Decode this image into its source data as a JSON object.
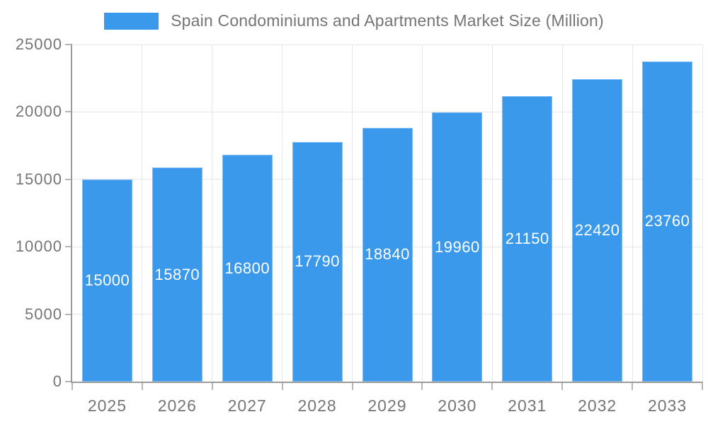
{
  "chart_data": {
    "type": "bar",
    "title": "Spain Condominiums and Apartments Market Size (Million)",
    "categories": [
      "2025",
      "2026",
      "2027",
      "2028",
      "2029",
      "2030",
      "2031",
      "2032",
      "2033"
    ],
    "values": [
      15000,
      15870,
      16800,
      17790,
      18840,
      19960,
      21150,
      22420,
      23760
    ],
    "xlabel": "",
    "ylabel": "",
    "ylim": [
      0,
      25000
    ],
    "yticks": [
      0,
      5000,
      10000,
      15000,
      20000,
      25000
    ],
    "grid": true,
    "legend_position": "top-center",
    "value_label_position": "inside-center",
    "colors": {
      "bar": "#3b99ec",
      "bar_border": "#7fbcf3",
      "value_label": "#ffffff",
      "axis": "#9b9b9b",
      "tick": "#b5b5b5",
      "grid": "#e6e6e6",
      "text": "#757575",
      "background": "#ffffff"
    }
  }
}
